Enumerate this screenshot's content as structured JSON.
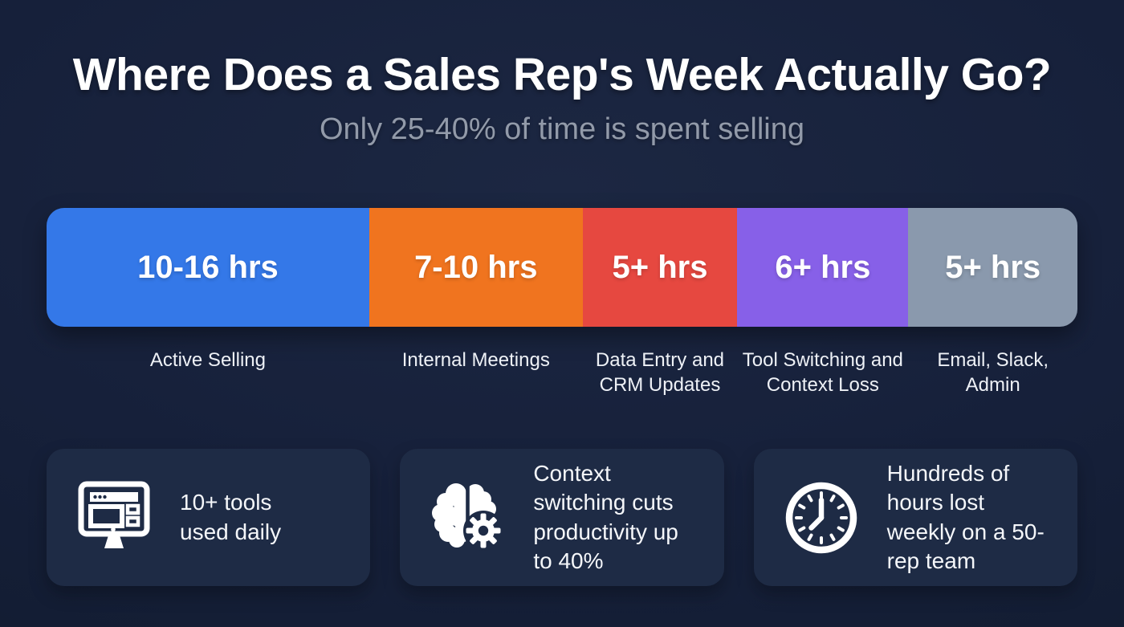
{
  "page": {
    "title": "Where Does a Sales Rep's Week Actually Go?",
    "subtitle": "Only 25-40% of time is spent selling"
  },
  "colors": {
    "background": "#16203a",
    "card_background": "#1e2b45",
    "title_text": "#ffffff",
    "subtitle_text": "#929aa9",
    "caption_text": "#eef1f6",
    "segment_active_selling": "#3478e8",
    "segment_internal_meetings": "#f0741f",
    "segment_data_entry": "#e64840",
    "segment_tool_switching": "#8760e8",
    "segment_email_admin": "#8a99ad"
  },
  "chart_data": {
    "type": "bar",
    "orientation": "horizontal-stacked",
    "title": "Where Does a Sales Rep's Week Actually Go?",
    "subtitle": "Only 25-40% of time is spent selling",
    "unit": "hours per week",
    "legend_position": "below-segments",
    "grid": false,
    "segments": [
      {
        "label": "Active Selling",
        "value": "10-16 hrs",
        "hours_min": 10,
        "hours_max": 16,
        "width_pct": 31.3,
        "color": "#3478e8"
      },
      {
        "label": "Internal Meetings",
        "value": "7-10 hrs",
        "hours_min": 7,
        "hours_max": 10,
        "width_pct": 20.7,
        "color": "#f0741f"
      },
      {
        "label": "Data Entry and CRM Updates",
        "value": "5+ hrs",
        "hours_min": 5,
        "hours_max": null,
        "width_pct": 15.0,
        "color": "#e64840"
      },
      {
        "label": "Tool Switching and Context Loss",
        "value": "6+ hrs",
        "hours_min": 6,
        "hours_max": null,
        "width_pct": 16.6,
        "color": "#8760e8"
      },
      {
        "label": "Email, Slack, Admin",
        "value": "5+ hrs",
        "hours_min": 5,
        "hours_max": null,
        "width_pct": 16.4,
        "color": "#8a99ad"
      }
    ]
  },
  "stats": [
    {
      "icon": "monitor-tools-icon",
      "text": "10+ tools used daily"
    },
    {
      "icon": "brain-gear-icon",
      "text": "Context switching cuts productivity up to 40%"
    },
    {
      "icon": "clock-icon",
      "text": "Hundreds of hours lost weekly on a 50-rep team"
    }
  ]
}
